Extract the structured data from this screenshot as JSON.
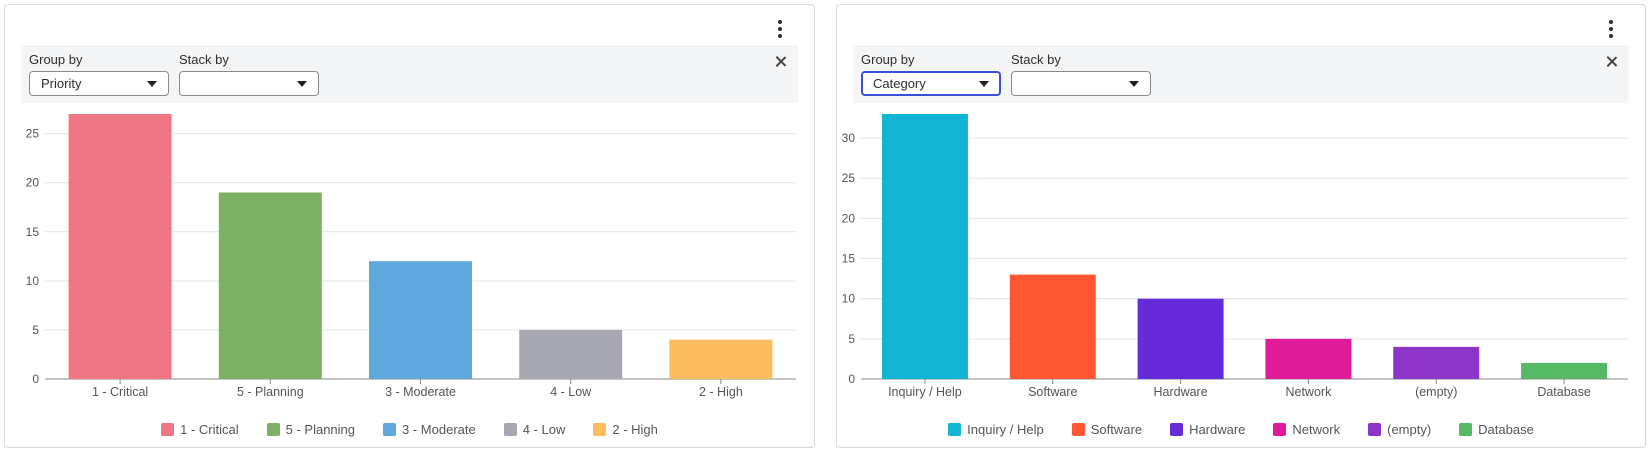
{
  "panels": [
    {
      "group_by_label": "Group by",
      "group_by_value": "Priority",
      "stack_by_label": "Stack by",
      "stack_by_value": "",
      "chart_data": {
        "type": "bar",
        "categories": [
          "1 - Critical",
          "5 - Planning",
          "3 - Moderate",
          "4 - Low",
          "2 - High"
        ],
        "values": [
          27,
          19,
          12,
          5,
          4
        ],
        "colors": [
          "#ee7783",
          "#7db065",
          "#5ea8dd",
          "#a8a8b2",
          "#fbbd5e"
        ],
        "ylim": [
          0,
          27
        ],
        "yticks": [
          0,
          5,
          10,
          15,
          20,
          25
        ],
        "grid": true,
        "legend": "bottom",
        "title": "",
        "xlabel": "",
        "ylabel": ""
      }
    },
    {
      "group_by_label": "Group by",
      "group_by_value": "Category",
      "stack_by_label": "Stack by",
      "stack_by_value": "",
      "chart_data": {
        "type": "bar",
        "categories": [
          "Inquiry / Help",
          "Software",
          "Hardware",
          "Network",
          "(empty)",
          "Database"
        ],
        "values": [
          33,
          13,
          10,
          5,
          4,
          2
        ],
        "colors": [
          "#10b5d6",
          "#ff5733",
          "#652bdb",
          "#e01b9a",
          "#8c35c9",
          "#55b965"
        ],
        "ylim": [
          0,
          33
        ],
        "yticks": [
          0,
          5,
          10,
          15,
          20,
          25,
          30
        ],
        "grid": true,
        "legend": "bottom",
        "title": "",
        "xlabel": "",
        "ylabel": ""
      }
    }
  ]
}
